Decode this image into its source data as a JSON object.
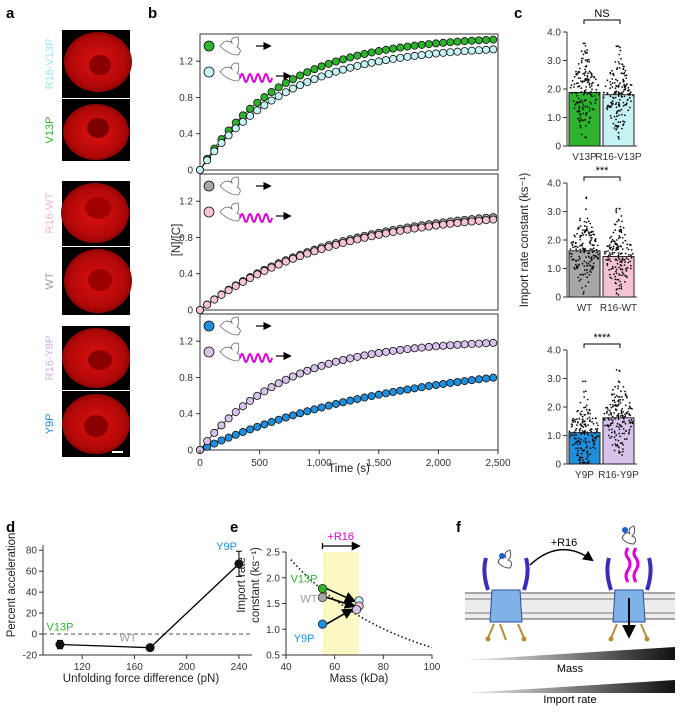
{
  "panel_labels": {
    "a": "a",
    "b": "b",
    "c": "c",
    "d": "d",
    "e": "e",
    "f": "f"
  },
  "colors": {
    "green": "#2db32d",
    "cyan": "#c6f3f5",
    "gray": "#a7a7a7",
    "pink": "#f6c3d3",
    "blue": "#1f8fdd",
    "lavender": "#d7c3ea",
    "yellow_band": "#fbf8c4",
    "magenta": "#e000d0",
    "red_cell": "#d01010"
  },
  "micrographs": {
    "groups": [
      {
        "top_label": "R16-V13P",
        "bottom_label": "V13P",
        "top_color": "#9fe7ea",
        "bottom_color": "#2db32d"
      },
      {
        "top_label": "R16-WT",
        "bottom_label": "WT",
        "top_color": "#f6b8cc",
        "bottom_color": "#a0a0a0"
      },
      {
        "top_label": "R16-Y9P",
        "bottom_label": "Y9P",
        "top_color": "#cdb0e6",
        "bottom_color": "#1f8fdd"
      }
    ]
  },
  "chart_data": [
    {
      "id": "b",
      "type": "scatter",
      "xlabel": "Time (s)",
      "ylabel": "[N]/[C]",
      "xlim": [
        0,
        2500
      ],
      "x_ticks": [
        "0",
        "500",
        "1,000",
        "1,500",
        "2,000",
        "2,500"
      ],
      "subplots": [
        {
          "ylim": [
            0,
            1.5
          ],
          "y_ticks": [
            "0",
            "0.4",
            "0.8",
            "1.2"
          ],
          "series": [
            {
              "name": "V13P",
              "plateau": 1.48,
              "rate": 0.00145,
              "fill": "#2db32d"
            },
            {
              "name": "R16-V13P",
              "plateau": 1.38,
              "rate": 0.00135,
              "fill": "#c6f3f5"
            }
          ]
        },
        {
          "ylim": [
            0,
            1.5
          ],
          "y_ticks": [
            "0",
            "0.4",
            "0.8",
            "1.2"
          ],
          "series": [
            {
              "name": "WT",
              "plateau": 1.15,
              "rate": 0.0009,
              "fill": "#a7a7a7"
            },
            {
              "name": "R16-WT",
              "plateau": 1.12,
              "rate": 0.0009,
              "fill": "#f6c3d3"
            }
          ]
        },
        {
          "ylim": [
            0,
            1.5
          ],
          "y_ticks": [
            "0",
            "0.4",
            "0.8",
            "1.2"
          ],
          "series": [
            {
              "name": "Y9P",
              "plateau": 1.05,
              "rate": 0.00058,
              "fill": "#1f8fdd"
            },
            {
              "name": "R16-Y9P",
              "plateau": 1.22,
              "rate": 0.0014,
              "fill": "#d7c3ea"
            }
          ]
        }
      ]
    },
    {
      "id": "c",
      "type": "bar",
      "ylabel": "Import rate constant (ks⁻¹)",
      "ylim": [
        0,
        4.0
      ],
      "y_ticks": [
        "0",
        "1.0",
        "2.0",
        "3.0",
        "4.0"
      ],
      "subplots": [
        {
          "categories": [
            "V13P",
            "R16-V13P"
          ],
          "values": [
            1.88,
            1.8
          ],
          "fills": [
            "#2db32d",
            "#c6f3f5"
          ],
          "significance": "NS",
          "max_points": [
            3.6,
            3.5
          ]
        },
        {
          "categories": [
            "WT",
            "R16-WT"
          ],
          "values": [
            1.62,
            1.42
          ],
          "fills": [
            "#a7a7a7",
            "#f6c3d3"
          ],
          "significance": "***",
          "max_points": [
            3.5,
            3.1
          ]
        },
        {
          "categories": [
            "Y9P",
            "R16-Y9P"
          ],
          "values": [
            1.1,
            1.62
          ],
          "fills": [
            "#1f8fdd",
            "#d7c3ea"
          ],
          "significance": "****",
          "max_points": [
            2.9,
            3.3
          ]
        }
      ]
    },
    {
      "id": "d",
      "type": "line",
      "xlabel": "Unfolding force difference (pN)",
      "ylabel": "Percent acceleration",
      "xlim": [
        90,
        250
      ],
      "ylim": [
        -20,
        85
      ],
      "x_ticks": [
        120,
        160,
        200,
        240
      ],
      "y_ticks": [
        -20,
        0,
        20,
        40,
        60,
        80
      ],
      "points": [
        {
          "label": "V13P",
          "x": 103,
          "y": -10,
          "err": 4,
          "label_color": "#2db32d"
        },
        {
          "label": "WT",
          "x": 172,
          "y": -13,
          "err": 0,
          "label_color": "#9a9a9a"
        },
        {
          "label": "Y9P",
          "x": 240,
          "y": 67,
          "err": 12,
          "label_color": "#1f8fdd"
        }
      ]
    },
    {
      "id": "e",
      "type": "scatter",
      "xlabel": "Mass (kDa)",
      "ylabel_lines": [
        "Import rate",
        "constant (ks⁻¹)"
      ],
      "xlim": [
        40,
        100
      ],
      "ylim": [
        0.5,
        2.5
      ],
      "x_ticks": [
        40,
        60,
        80,
        100
      ],
      "y_ticks": [
        "0.5",
        "1.0",
        "1.5",
        "2.0",
        "2.5"
      ],
      "band_label": "+R16",
      "band": [
        55,
        70
      ],
      "fit_a": 6.0,
      "fit_b": 0.0223,
      "points": [
        {
          "label": "V13P",
          "x": 55,
          "y": 1.79,
          "fill": "#2db32d"
        },
        {
          "label": "WT",
          "x": 55,
          "y": 1.62,
          "fill": "#a7a7a7"
        },
        {
          "label": "Y9P",
          "x": 55,
          "y": 1.1,
          "fill": "#1f8fdd"
        },
        {
          "label": "R16-V13P",
          "x": 70,
          "y": 1.55,
          "fill": "#c6f3f5"
        },
        {
          "label": "R16-WT",
          "x": 70,
          "y": 1.45,
          "fill": "#f6c3d3"
        },
        {
          "label": "R16-Y9P",
          "x": 69,
          "y": 1.38,
          "fill": "#d7c3ea"
        }
      ]
    }
  ],
  "schematic": {
    "arrow_label": "+R16",
    "gradient1_label": "Mass",
    "gradient2_label": "Import rate"
  }
}
